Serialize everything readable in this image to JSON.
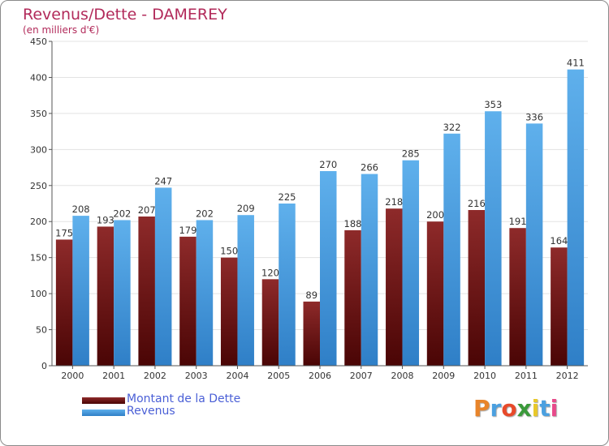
{
  "title": "Revenus/Dette - DAMEREY",
  "subtitle": "(en milliers d'€)",
  "logo_text": "Proxiti",
  "colors": {
    "dette": "#7a1a1a",
    "revenus": "#4a9fe0",
    "title": "#b22a5a",
    "legend_text": "#4a5fd6"
  },
  "chart_data": {
    "type": "bar",
    "title": "Revenus/Dette - DAMEREY",
    "subtitle": "(en milliers d'€)",
    "categories": [
      "2000",
      "2001",
      "2002",
      "2003",
      "2004",
      "2005",
      "2006",
      "2007",
      "2008",
      "2009",
      "2010",
      "2011",
      "2012"
    ],
    "series": [
      {
        "name": "Montant de la Dette",
        "values": [
          175,
          193,
          207,
          179,
          150,
          120,
          89,
          188,
          218,
          200,
          216,
          191,
          164
        ]
      },
      {
        "name": "Revenus",
        "values": [
          208,
          202,
          247,
          202,
          209,
          225,
          270,
          266,
          285,
          322,
          353,
          336,
          411
        ]
      }
    ],
    "ylim": [
      0,
      450
    ],
    "yticks": [
      0,
      50,
      100,
      150,
      200,
      250,
      300,
      350,
      400,
      450
    ],
    "grid": true,
    "legend": "bottom-left"
  }
}
